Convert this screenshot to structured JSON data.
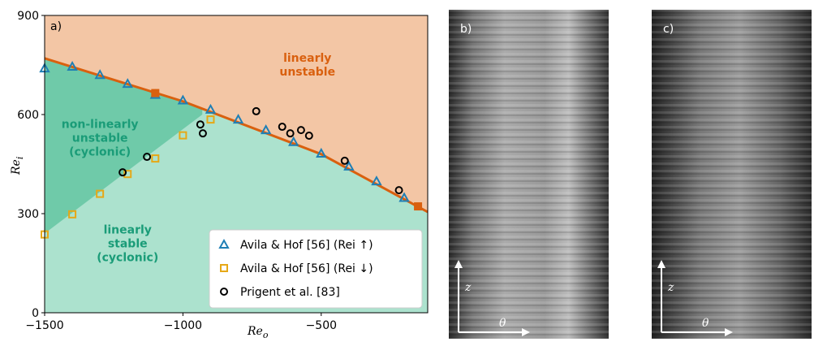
{
  "chart_data": {
    "type": "scatter",
    "panel_label": "a)",
    "x_label": {
      "base": "Re",
      "sub": "o"
    },
    "y_label": {
      "base": "Re",
      "sub": "i"
    },
    "xlim": [
      -1500,
      -115
    ],
    "ylim": [
      0,
      900
    ],
    "xticks": [
      {
        "value": -1500,
        "label": "−1500"
      },
      {
        "value": -1000,
        "label": "−1000"
      },
      {
        "value": -500,
        "label": "−500"
      }
    ],
    "yticks": [
      0,
      300,
      600,
      900
    ],
    "regions": {
      "unstable_color": "#f3c6a5",
      "nonlinear_color": "#6fcaa9",
      "stable_color": "#ace2ce",
      "line_color": "#d9600f",
      "linear": {
        "x": [
          -1500,
          -1000,
          -500,
          -115
        ],
        "y": [
          770,
          640,
          480,
          305
        ]
      },
      "nonlinear": {
        "x": [
          -1500,
          -930
        ],
        "y": [
          240,
          600
        ]
      },
      "labels": [
        {
          "lines": [
            "linearly",
            "unstable"
          ],
          "x": -550,
          "y": 760,
          "color": "#d9600f"
        },
        {
          "lines": [
            "non-linearly",
            "unstable",
            "(cyclonic)"
          ],
          "x": -1300,
          "y": 560,
          "color": "#1a9c78"
        },
        {
          "lines": [
            "linearly",
            "stable",
            "(cyclonic)"
          ],
          "x": -1200,
          "y": 240,
          "color": "#1a9c78"
        }
      ]
    },
    "legend": "lower right",
    "series": [
      {
        "name": "Avila & Hof [56] (Rei ↑)",
        "marker": "triangle",
        "color": "#1f7fb5",
        "x": [
          -1500,
          -1400,
          -1300,
          -1200,
          -1100,
          -1000,
          -900,
          -800,
          -700,
          -600,
          -500,
          -400,
          -300,
          -200
        ],
        "values": [
          740,
          745,
          720,
          693,
          660,
          643,
          615,
          585,
          553,
          517,
          482,
          443,
          398,
          348
        ]
      },
      {
        "name": "Avila & Hof [56] (Rei ↓)",
        "marker": "square",
        "color": "#e6a817",
        "x": [
          -1500,
          -1400,
          -1300,
          -1200,
          -1100,
          -1000,
          -900,
          -1100,
          -150
        ],
        "values": [
          237,
          298,
          360,
          420,
          467,
          537,
          585,
          665,
          322
        ],
        "filled": [
          false,
          false,
          false,
          false,
          false,
          false,
          false,
          true,
          true
        ]
      },
      {
        "name": "Prigent et al. [83]",
        "marker": "circle",
        "color": "#000000",
        "x": [
          -1218,
          -1130,
          -928,
          -937,
          -735,
          -641,
          -612,
          -573,
          -544,
          -415,
          -219
        ],
        "values": [
          425,
          472,
          543,
          570,
          610,
          563,
          543,
          553,
          536,
          460,
          371
        ]
      }
    ]
  },
  "images": [
    {
      "label": "b)",
      "axis_x": "θ",
      "axis_y": "z"
    },
    {
      "label": "c)",
      "axis_x": "θ",
      "axis_y": "z"
    }
  ]
}
